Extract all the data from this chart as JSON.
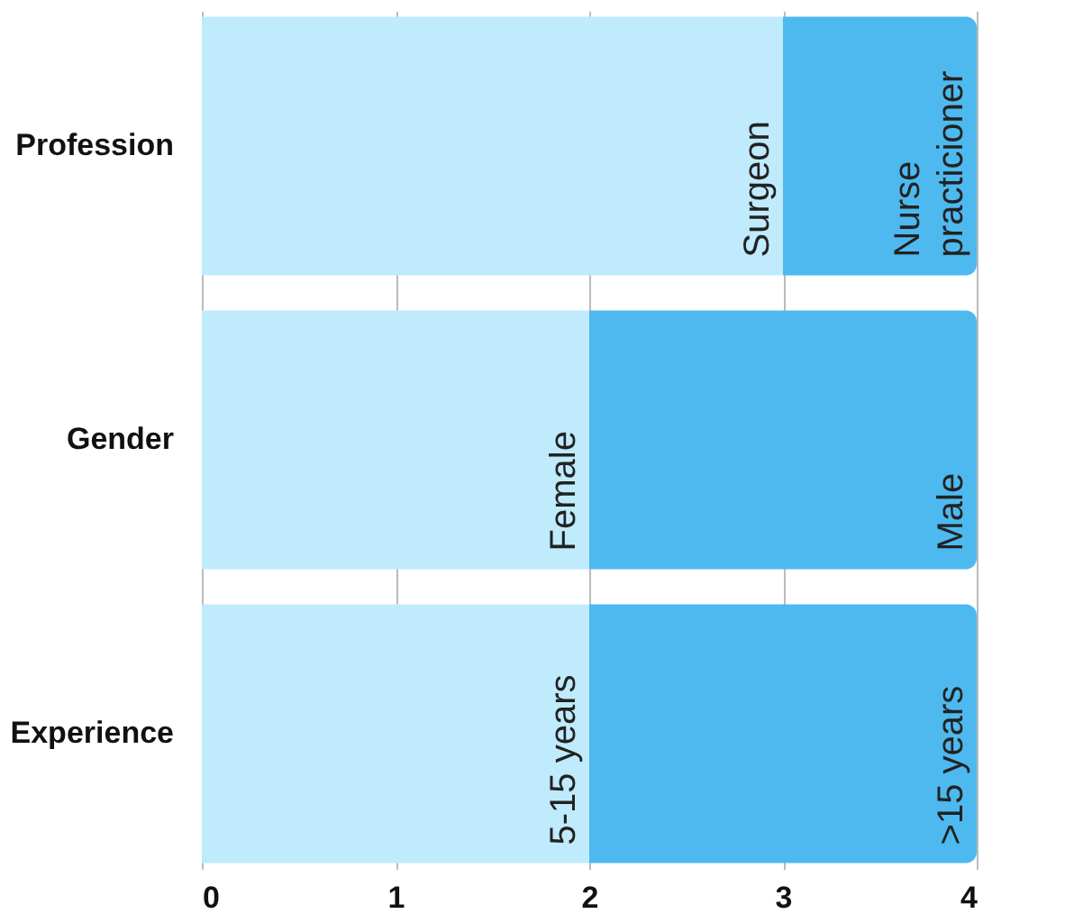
{
  "chart_data": {
    "type": "bar",
    "orientation": "horizontal",
    "stacked": true,
    "categories": [
      "Profession",
      "Gender",
      "Experience"
    ],
    "series": [
      {
        "color": "#bfebfd",
        "values": [
          3,
          2,
          2
        ]
      },
      {
        "color": "#4db9ef",
        "values": [
          1,
          2,
          2
        ]
      }
    ],
    "xlim": [
      0,
      4
    ],
    "xticks": [
      0,
      1,
      2,
      3,
      4
    ],
    "grid": "x",
    "annotations": [
      {
        "text": "Surgeon",
        "x": 3,
        "y": "Profession"
      },
      {
        "text": "Nurse\npracticioner",
        "x": 4,
        "y": "Profession"
      },
      {
        "text": "Female",
        "x": 2,
        "y": "Gender"
      },
      {
        "text": "Male",
        "x": 4,
        "y": "Gender"
      },
      {
        "text": "5-15 years",
        "x": 2,
        "y": "Experience"
      },
      {
        "text": ">15 years",
        "x": 4,
        "y": "Experience"
      }
    ]
  }
}
